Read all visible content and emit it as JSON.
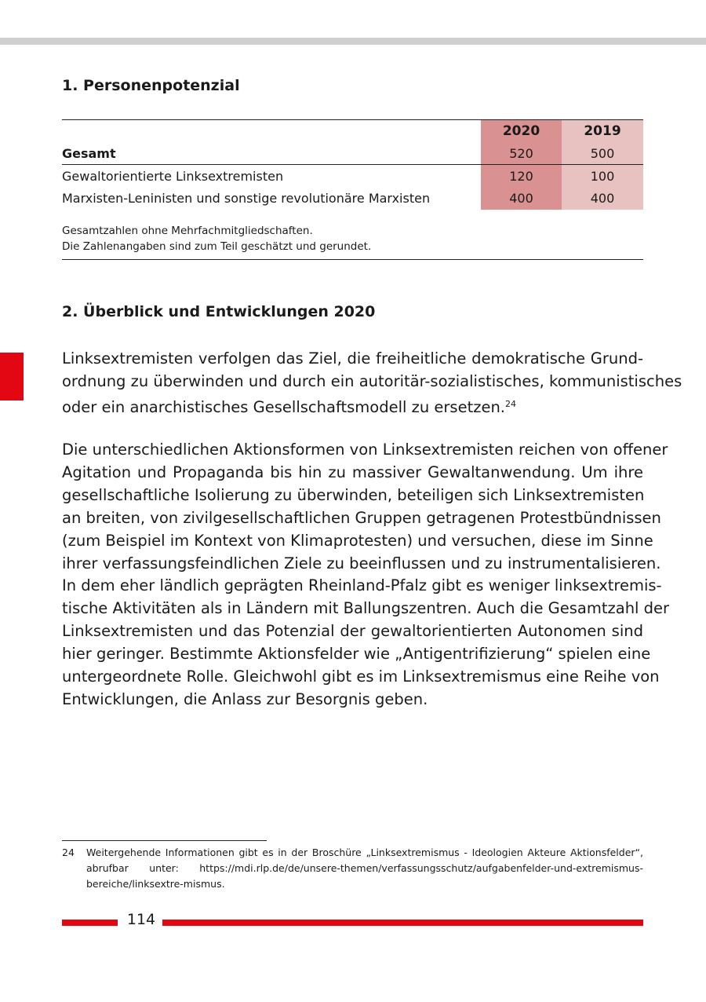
{
  "section1": {
    "title": "1. Personenpotenzial"
  },
  "table": {
    "headers": [
      "",
      "2020",
      "2019"
    ],
    "rows": [
      {
        "label": "Gesamt",
        "v2020": "520",
        "v2019": "500"
      },
      {
        "label": "Gewaltorientierte Linksextremisten",
        "v2020": "120",
        "v2019": "100"
      },
      {
        "label": "Marxisten-Leninisten und sonstige revolutionäre Marxisten",
        "v2020": "400",
        "v2019": "400"
      }
    ],
    "notes": [
      "Gesamtzahlen ohne Mehrfachmitgliedschaften.",
      "Die Zahlenangaben sind zum Teil geschätzt und gerundet."
    ],
    "colors": {
      "col2020": "#d99191",
      "col2019": "#e8c1c1"
    }
  },
  "section2": {
    "title": "2. Überblick und Entwicklungen 2020"
  },
  "paragraph1": [
    "Linksextremisten verfolgen das Ziel, die freiheitliche demokratische Grund-",
    "ordnung zu überwinden und durch ein autoritär-sozialistisches, kommunistisches",
    "oder ein anarchistisches Gesellschaftsmodell zu ersetzen."
  ],
  "footnote_ref": "24",
  "paragraph2": [
    "Die unterschiedlichen Aktionsformen von Linksextremisten reichen von offener",
    "Agitation und Propaganda bis hin zu massiver Gewaltanwendung. Um ihre",
    "gesellschaftliche Isolierung zu überwinden, beteiligen sich Linksextremisten",
    "an breiten, von zivilgesellschaftlichen Gruppen getragenen Protestbündnissen",
    "(zum Beispiel im Kontext von Klimaprotesten) und versuchen, diese im Sinne",
    "ihrer verfassungsfeindlichen Ziele zu beeinflussen und zu instrumentalisieren.",
    "In dem eher ländlich geprägten Rheinland-Pfalz gibt es weniger linksextremis-",
    "tische Aktivitäten als in Ländern mit Ballungszentren. Auch die Gesamtzahl der",
    "Linksextremisten und das Potenzial der gewaltorientierten Autonomen sind",
    "hier geringer. Bestimmte Aktionsfelder wie „Antigentrifizierung“ spielen eine",
    "untergeordnete Rolle. Gleichwohl gibt es im Linksextremismus eine Reihe von",
    "Entwicklungen, die Anlass zur Besorgnis geben."
  ],
  "footnote": {
    "number": "24",
    "text": "Weitergehende Informationen gibt es in der Broschüre „Linksextremismus - Ideologien Akteure Aktionsfelder“, abrufbar unter:  https://mdi.rlp.de/de/unsere-themen/verfassungsschutz/aufgabenfelder-und-extremismus-bereiche/linksextre-mismus."
  },
  "page_number": "114",
  "colors": {
    "accent": "#e30613",
    "topbar": "#cfcfcf"
  }
}
